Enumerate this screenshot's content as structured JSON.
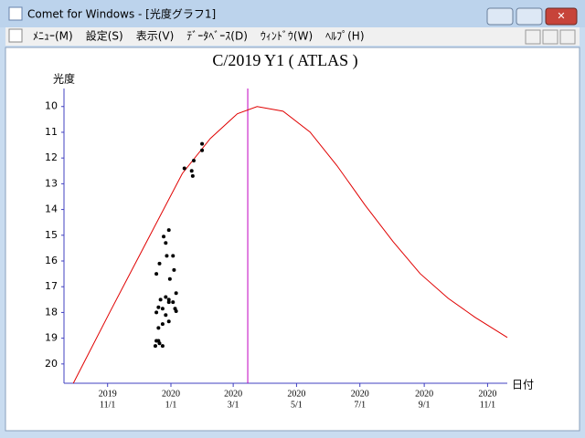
{
  "window": {
    "title": "Comet for Windows - [光度グラフ1]",
    "menu": [
      "ﾒﾆｭｰ(M)",
      "設定(S)",
      "表示(V)",
      "ﾃﾞｰﾀﾍﾞｰｽ(D)",
      "ｳｨﾝﾄﾞｳ(W)",
      "ﾍﾙﾌﾟ(H)"
    ]
  },
  "chart_data": {
    "type": "line",
    "title": "C/2019 Y1 ( ATLAS )",
    "y_label": "光度",
    "x_label": "日付",
    "xlim": [
      "2019-09-20",
      "2020-11-20"
    ],
    "ylim": [
      20.75,
      9.3
    ],
    "yticks": [
      10,
      11,
      12,
      13,
      14,
      15,
      16,
      17,
      18,
      19,
      20
    ],
    "xticks": [
      {
        "value": "2019-11-01",
        "label": [
          "2019",
          "11/1"
        ]
      },
      {
        "value": "2020-01-01",
        "label": [
          "2020",
          "1/1"
        ]
      },
      {
        "value": "2020-03-01",
        "label": [
          "2020",
          "3/1"
        ]
      },
      {
        "value": "2020-05-01",
        "label": [
          "2020",
          "5/1"
        ]
      },
      {
        "value": "2020-07-01",
        "label": [
          "2020",
          "7/1"
        ]
      },
      {
        "value": "2020-09-01",
        "label": [
          "2020",
          "9/1"
        ]
      },
      {
        "value": "2020-11-01",
        "label": [
          "2020",
          "11/1"
        ]
      }
    ],
    "marker_date": "2020-03-15",
    "marker_color": "#c000c0",
    "series": [
      {
        "type": "line",
        "color": "#e00000",
        "x": [
          "2019-09-29",
          "2019-11-03",
          "2019-12-08",
          "2020-01-12",
          "2020-02-08",
          "2020-03-05",
          "2020-03-24",
          "2020-04-18",
          "2020-05-14",
          "2020-06-09",
          "2020-07-06",
          "2020-08-02",
          "2020-08-28",
          "2020-09-24",
          "2020-10-20",
          "2020-11-20"
        ],
        "values": [
          20.75,
          18.0,
          15.3,
          12.6,
          11.24,
          10.28,
          10.0,
          10.18,
          10.99,
          12.3,
          13.83,
          15.25,
          16.49,
          17.45,
          18.19,
          18.97
        ]
      },
      {
        "type": "scatter",
        "color": "#000000",
        "x": [
          "2020-01-31",
          "2020-01-31",
          "2020-01-23",
          "2020-01-14",
          "2020-01-21",
          "2020-01-22",
          "2019-12-30",
          "2019-12-25",
          "2019-12-27",
          "2019-12-21",
          "2019-12-28",
          "2020-01-03",
          "2019-12-18",
          "2020-01-04",
          "2019-12-31",
          "2020-01-06",
          "2019-12-27",
          "2019-12-30",
          "2019-12-22",
          "2019-12-20",
          "2019-12-24",
          "2019-12-18",
          "2019-12-30",
          "2020-01-03",
          "2020-01-05",
          "2020-01-06",
          "2019-12-27",
          "2019-12-24",
          "2019-12-20",
          "2019-12-18",
          "2019-12-21",
          "2019-12-17",
          "2019-12-24",
          "2019-12-20",
          "2019-12-30"
        ],
        "values": [
          11.45,
          11.7,
          12.1,
          12.4,
          12.5,
          12.7,
          14.8,
          15.05,
          15.3,
          16.1,
          15.8,
          15.8,
          16.5,
          16.35,
          16.7,
          17.25,
          17.4,
          17.5,
          17.5,
          17.8,
          17.85,
          18.0,
          17.6,
          17.6,
          17.85,
          17.95,
          18.1,
          18.45,
          18.6,
          19.1,
          19.2,
          19.3,
          19.3,
          19.1,
          18.35
        ]
      }
    ]
  }
}
